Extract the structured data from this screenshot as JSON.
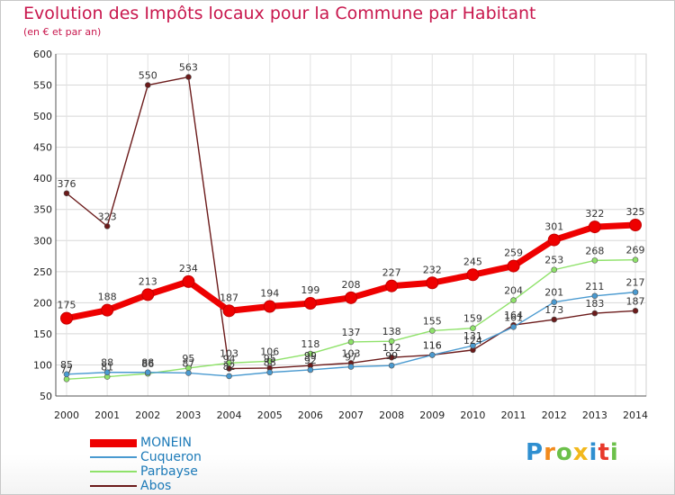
{
  "header": {
    "title": "Evolution des Impôts locaux pour la Commune par Habitant",
    "subtitle": "(en € et par an)"
  },
  "branding": {
    "logo_text": "Proxiti"
  },
  "chart_data": {
    "type": "line",
    "title": "Evolution des Impôts locaux pour la Commune par Habitant",
    "subtitle": "(en € et par an)",
    "xlabel": "",
    "ylabel": "",
    "x": [
      "2000",
      "2001",
      "2002",
      "2003",
      "2004",
      "2005",
      "2006",
      "2007",
      "2008",
      "2009",
      "2010",
      "2011",
      "2012",
      "2013",
      "2014"
    ],
    "y_ticks": [
      50,
      100,
      150,
      200,
      250,
      300,
      350,
      400,
      450,
      500,
      550,
      600
    ],
    "ylim": [
      50,
      600
    ],
    "grid": true,
    "legend_position": "bottom-left",
    "series": [
      {
        "name": "MONEIN",
        "color": "#ee0000",
        "values": [
          175,
          188,
          213,
          234,
          187,
          194,
          199,
          208,
          227,
          232,
          245,
          259,
          301,
          322,
          325
        ],
        "labels": [
          "175",
          "188",
          "213",
          "234",
          "187",
          "194",
          "199",
          "208",
          "227",
          "232",
          "245",
          "259",
          "301",
          "322",
          "325"
        ]
      },
      {
        "name": "Cuqueron",
        "color": "#4a9ad0",
        "values": [
          85,
          88,
          88,
          87,
          82,
          88,
          92,
          97,
          99,
          116,
          131,
          161,
          201,
          211,
          217
        ],
        "labels": [
          "85",
          "88",
          "88",
          "87",
          "82",
          "88",
          "92",
          "97",
          "99",
          "116",
          "131",
          "161",
          "201",
          "211",
          "217"
        ]
      },
      {
        "name": "Parbayse",
        "color": "#8fe26a",
        "values": [
          77,
          81,
          86,
          95,
          103,
          106,
          118,
          137,
          138,
          155,
          159,
          204,
          253,
          268,
          269
        ],
        "labels": [
          "77",
          "81",
          "86",
          "95",
          "103",
          "106",
          "118",
          "137",
          "138",
          "155",
          "159",
          "204",
          "253",
          "268",
          "269"
        ]
      },
      {
        "name": "Abos",
        "color": "#6b1a1a",
        "values": [
          376,
          323,
          550,
          563,
          94,
          95,
          99,
          103,
          112,
          116,
          124,
          164,
          173,
          183,
          187
        ],
        "labels": [
          "376",
          "323",
          "550",
          "563",
          "94",
          "95",
          "99",
          "103",
          "112",
          "116",
          "124",
          "164",
          "173",
          "183",
          "187"
        ]
      }
    ]
  }
}
